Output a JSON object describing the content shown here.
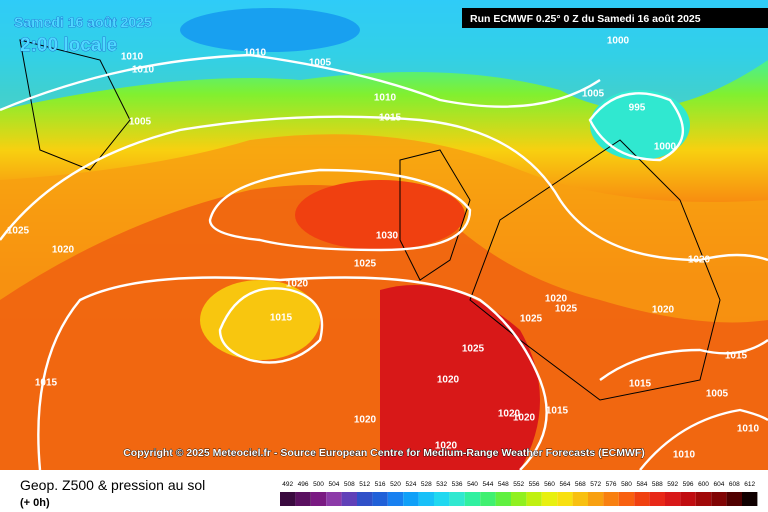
{
  "header": {
    "date": "Samedi 16 août 2025",
    "local_time": "2:00 locale",
    "run": "Run ECMWF 0.25° 0 Z du Samedi 16 août 2025"
  },
  "copyright": "Copyright © 2025 Meteociel.fr - Source European Centre for Medium-Range Weather Forecasts (ECMWF)",
  "footer": {
    "title": "Geop. Z500 & pression au sol",
    "lead": "(+ 0h)"
  },
  "isobar_labels": [
    "1010",
    "1010",
    "1010",
    "1005",
    "1000",
    "1010",
    "1015",
    "1005",
    "995",
    "1005",
    "1000",
    "1025",
    "1020",
    "1030",
    "1025",
    "1020",
    "1020",
    "1015",
    "1020",
    "1025",
    "1025",
    "1020",
    "1025",
    "1015",
    "1020",
    "1015",
    "1015",
    "1005",
    "1020",
    "1020",
    "1020",
    "1015",
    "1010",
    "1020",
    "1010"
  ],
  "legend": {
    "values": [
      492,
      496,
      500,
      504,
      508,
      512,
      516,
      520,
      524,
      528,
      532,
      536,
      540,
      544,
      548,
      552,
      556,
      560,
      564,
      568,
      572,
      576,
      580,
      584,
      588,
      592,
      596,
      600,
      604,
      608,
      612
    ],
    "colors": [
      "#3a0a3f",
      "#5a1060",
      "#7a1a82",
      "#8c3aa8",
      "#6040b8",
      "#3050c8",
      "#2060d8",
      "#1880f0",
      "#10a0f8",
      "#18c0f8",
      "#20d8f0",
      "#30e8d0",
      "#30f0a0",
      "#40f070",
      "#60f040",
      "#90f020",
      "#c0f010",
      "#e8f010",
      "#f8e010",
      "#f8c010",
      "#f8a010",
      "#f88010",
      "#f86010",
      "#f04010",
      "#e82818",
      "#d81818",
      "#c00c10",
      "#a00808",
      "#800404",
      "#500000",
      "#100000"
    ]
  }
}
